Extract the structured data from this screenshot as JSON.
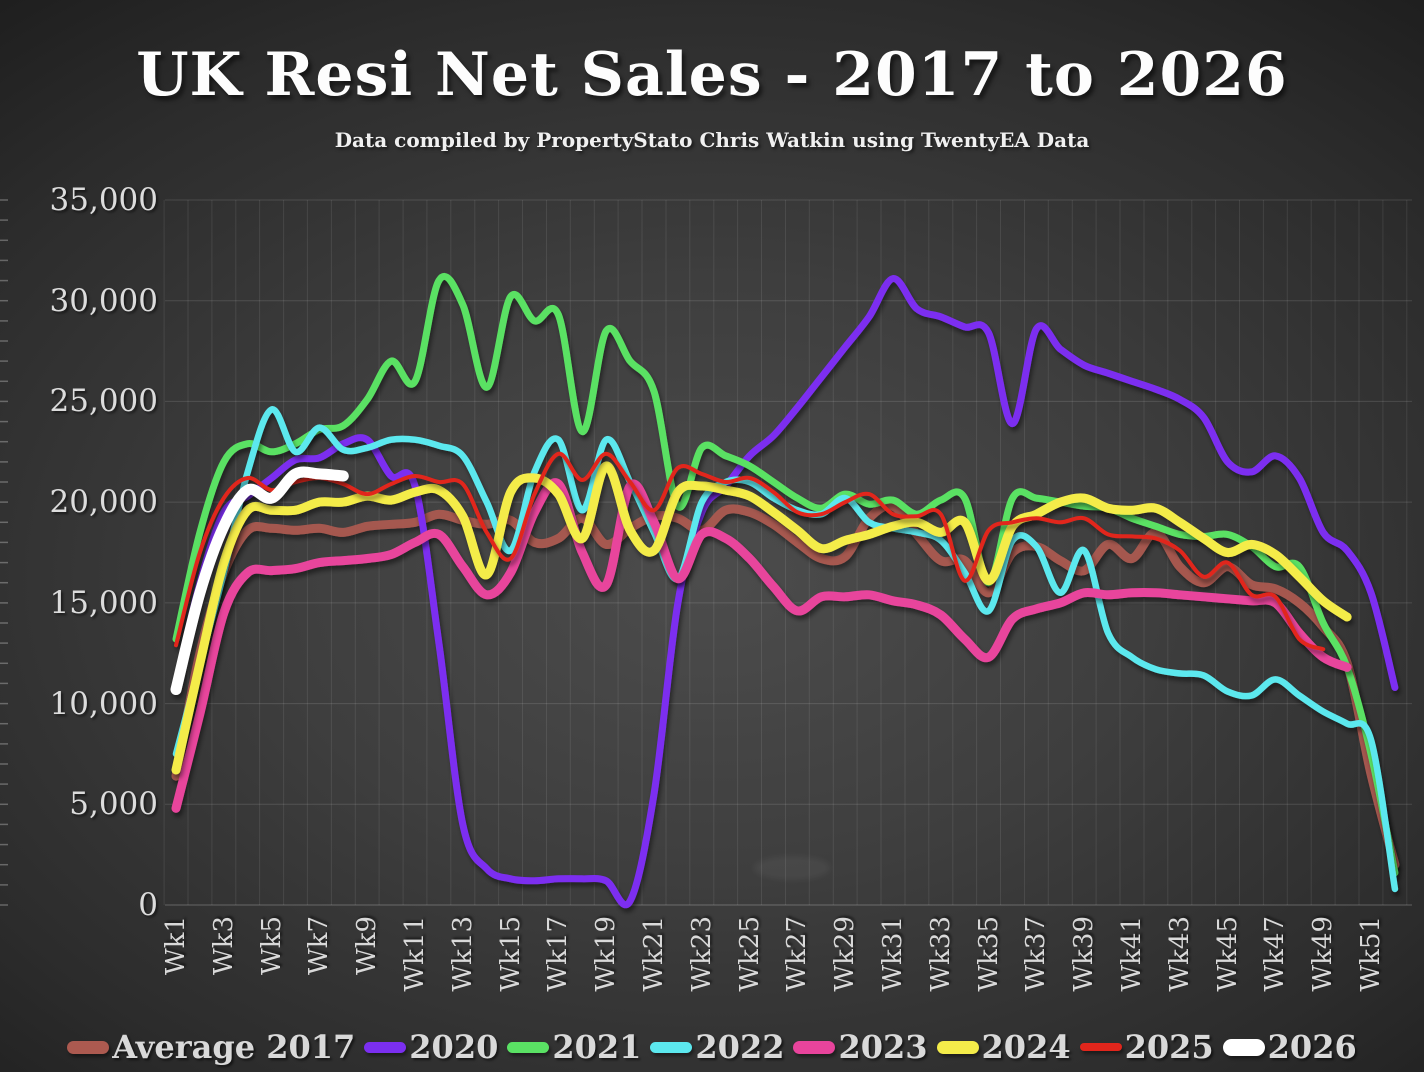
{
  "header": {
    "title": "UK  Resi Net Sales - 2017 to 2026",
    "subtitle": "Data compiled by PropertyStato Chris Watkin using TwentyEA Data"
  },
  "chart_data": {
    "type": "line",
    "title": "UK  Resi Net Sales - 2017 to 2026",
    "subtitle": "Data compiled by PropertyStato Chris Watkin using TwentyEA Data",
    "grid": true,
    "legend_position": "bottom",
    "x_axis": {
      "unit": "week",
      "weeks_range": [
        1,
        52
      ],
      "tick_labels": [
        "Wk1",
        "Wk3",
        "Wk5",
        "Wk7",
        "Wk9",
        "Wk11",
        "Wk13",
        "Wk15",
        "Wk17",
        "Wk19",
        "Wk21",
        "Wk23",
        "Wk25",
        "Wk27",
        "Wk29",
        "Wk31",
        "Wk33",
        "Wk35",
        "Wk37",
        "Wk39",
        "Wk41",
        "Wk43",
        "Wk45",
        "Wk47",
        "Wk49",
        "Wk51"
      ]
    },
    "y_axis": {
      "min": 0,
      "max": 35000,
      "step": 5000,
      "tick_labels": [
        "0",
        "5,000",
        "10,000",
        "15,000",
        "20,000",
        "25,000",
        "30,000",
        "35,000"
      ]
    },
    "series": [
      {
        "name": "Average 2017",
        "color": "#AC5A50",
        "line_width": 9,
        "opacity": 0.92,
        "values": [
          6400,
          12500,
          16500,
          18600,
          18700,
          18600,
          18700,
          18500,
          18800,
          18900,
          19000,
          19400,
          19100,
          18900,
          19100,
          18000,
          18200,
          19200,
          17900,
          18700,
          19300,
          19200,
          18600,
          19600,
          19500,
          18900,
          18000,
          17200,
          17300,
          19200,
          19800,
          18400,
          17100,
          17100,
          15500,
          17500,
          17800,
          17100,
          16600,
          17900,
          17200,
          18500,
          16800,
          16000,
          16800,
          15900,
          15700,
          15000,
          13800,
          12000,
          6500,
          2000
        ]
      },
      {
        "name": "2020",
        "color": "#7B2FF0",
        "line_width": 7,
        "opacity": 1,
        "values": [
          11000,
          16000,
          19500,
          20300,
          21200,
          22100,
          22200,
          22900,
          23100,
          21300,
          20800,
          13000,
          4000,
          1800,
          1300,
          1200,
          1300,
          1300,
          1200,
          200,
          5500,
          15000,
          19500,
          20800,
          22300,
          23300,
          24700,
          26200,
          27700,
          29200,
          31100,
          29600,
          29200,
          28700,
          28400,
          23900,
          28600,
          27600,
          26800,
          26400,
          26000,
          25600,
          25100,
          24200,
          22000,
          21500,
          22300,
          21200,
          18500,
          17600,
          15500,
          10800
        ]
      },
      {
        "name": "2021",
        "color": "#5AE164",
        "line_width": 7,
        "opacity": 1,
        "values": [
          13200,
          18500,
          22000,
          22900,
          22500,
          22900,
          23600,
          23800,
          25100,
          27000,
          26000,
          31000,
          29800,
          25700,
          30200,
          29000,
          29300,
          23500,
          28500,
          27000,
          25500,
          19800,
          22700,
          22300,
          21800,
          21000,
          20200,
          19700,
          20400,
          19900,
          20100,
          19400,
          20100,
          20200,
          16000,
          20200,
          20200,
          20000,
          19800,
          19700,
          19200,
          18800,
          18400,
          18300,
          18400,
          17800,
          16800,
          16800,
          14000,
          11800,
          7500,
          1600
        ]
      },
      {
        "name": "2022",
        "color": "#5CE8EE",
        "line_width": 6.5,
        "opacity": 1,
        "values": [
          7500,
          12000,
          16500,
          21500,
          24600,
          22500,
          23700,
          22600,
          22700,
          23100,
          23100,
          22800,
          22300,
          20000,
          17600,
          21500,
          23100,
          19600,
          23100,
          21000,
          18500,
          16200,
          20000,
          21000,
          21000,
          20200,
          19600,
          19400,
          20200,
          19000,
          18700,
          18500,
          18100,
          16500,
          14600,
          18100,
          17800,
          15500,
          17600,
          13500,
          12300,
          11700,
          11500,
          11400,
          10600,
          10400,
          11200,
          10400,
          9600,
          9000,
          8200,
          800
        ]
      },
      {
        "name": "2023",
        "color": "#E8449C",
        "line_width": 9,
        "opacity": 1,
        "values": [
          4800,
          9500,
          14500,
          16500,
          16600,
          16700,
          17000,
          17100,
          17200,
          17400,
          18000,
          18400,
          16800,
          15400,
          16500,
          19500,
          20900,
          17500,
          15900,
          20800,
          19000,
          16200,
          18400,
          18200,
          17200,
          15800,
          14600,
          15300,
          15300,
          15400,
          15100,
          14900,
          14400,
          13200,
          12300,
          14200,
          14700,
          15000,
          15500,
          15400,
          15500,
          15500,
          15400,
          15300,
          15200,
          15100,
          15000,
          13500,
          12300,
          11800,
          null,
          null
        ]
      },
      {
        "name": "2024",
        "color": "#F4EC4A",
        "line_width": 9,
        "opacity": 1,
        "values": [
          6700,
          12000,
          17000,
          19600,
          19600,
          19600,
          20000,
          20000,
          20300,
          20100,
          20500,
          20600,
          19300,
          16400,
          20500,
          21200,
          20400,
          18200,
          21800,
          18600,
          17600,
          20500,
          20800,
          20600,
          20300,
          19500,
          18600,
          17700,
          18100,
          18400,
          18800,
          19000,
          18500,
          19000,
          16100,
          18800,
          19400,
          20000,
          20200,
          19700,
          19600,
          19700,
          19000,
          18200,
          17500,
          17900,
          17400,
          16300,
          15100,
          14300,
          null,
          null
        ]
      },
      {
        "name": "2025",
        "color": "#E1261C",
        "line_width": 4,
        "opacity": 1,
        "values": [
          12900,
          17500,
          20200,
          21200,
          20600,
          21000,
          21200,
          20900,
          20400,
          20900,
          21300,
          21000,
          20900,
          18500,
          17200,
          20400,
          22400,
          21100,
          22400,
          21000,
          19600,
          21700,
          21400,
          21000,
          21200,
          20500,
          19500,
          19400,
          20000,
          20400,
          19400,
          19300,
          19400,
          16100,
          18600,
          19000,
          19200,
          19000,
          19200,
          18400,
          18300,
          18200,
          17600,
          16300,
          17000,
          15400,
          15300,
          13200,
          12700,
          null,
          null,
          null
        ]
      },
      {
        "name": "2026",
        "color": "#FFFFFF",
        "line_width": 11,
        "opacity": 1,
        "values": [
          10700,
          15500,
          18800,
          20600,
          20200,
          21400,
          21400,
          21300,
          null,
          null,
          null,
          null,
          null,
          null,
          null,
          null,
          null,
          null,
          null,
          null,
          null,
          null,
          null,
          null,
          null,
          null,
          null,
          null,
          null,
          null,
          null,
          null,
          null,
          null,
          null,
          null,
          null,
          null,
          null,
          null,
          null,
          null,
          null,
          null,
          null,
          null,
          null,
          null,
          null,
          null,
          null,
          null
        ]
      }
    ]
  },
  "legend": {
    "items": [
      {
        "label": "Average 2017",
        "color": "#AC5A50"
      },
      {
        "label": "2020",
        "color": "#7B2FF0"
      },
      {
        "label": "2021",
        "color": "#5AE164"
      },
      {
        "label": "2022",
        "color": "#5CE8EE"
      },
      {
        "label": "2023",
        "color": "#E8449C"
      },
      {
        "label": "2024",
        "color": "#F4EC4A"
      },
      {
        "label": "2025",
        "color": "#E1261C"
      },
      {
        "label": "2026",
        "color": "#FFFFFF"
      }
    ]
  }
}
